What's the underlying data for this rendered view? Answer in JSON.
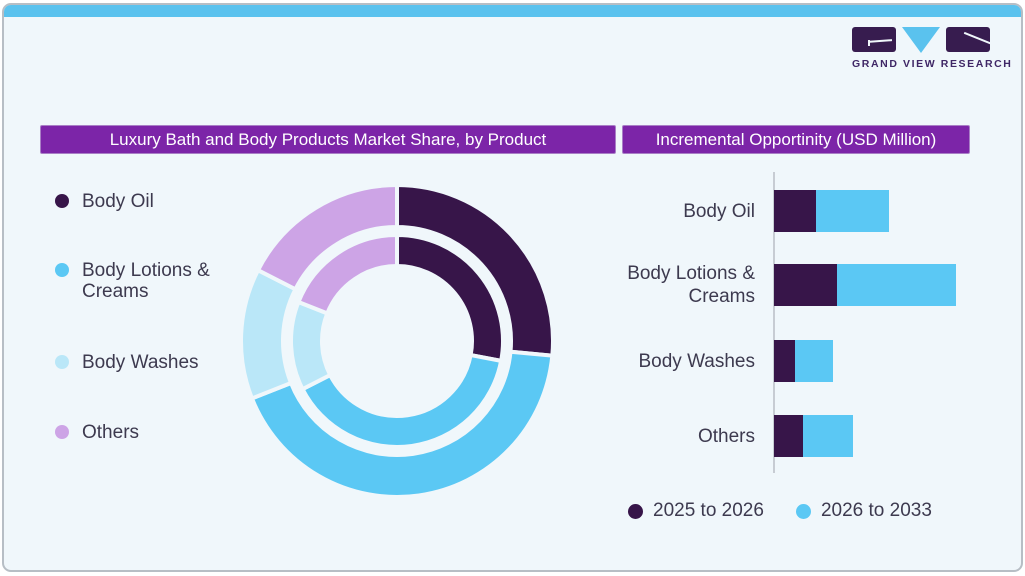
{
  "brand": {
    "name": "GRAND VIEW RESEARCH"
  },
  "panels": {
    "left_header": "Luxury Bath and Body Products Market Share, by Product",
    "right_header": "Incremental Opportinity (USD Million)"
  },
  "colors": {
    "background": "#f0f7fb",
    "card_border": "#b7bec5",
    "top_strip": "#5ac2ee",
    "header_bg": "#7c25a8",
    "header_text": "#ffffff",
    "label_text": "#3d3a4f",
    "axis_line": "#c7ccd3",
    "body_oil": "#371549",
    "body_lotions_creams": "#5bc8f4",
    "body_washes": "#bae7f8",
    "others": "#cda4e6"
  },
  "product_legend": [
    {
      "label": "Body Oil",
      "color": "#371549"
    },
    {
      "label": "Body Lotions & Creams",
      "color": "#5bc8f4"
    },
    {
      "label": "Body Washes",
      "color": "#bae7f8"
    },
    {
      "label": "Others",
      "color": "#cda4e6"
    }
  ],
  "period_legend": [
    {
      "label": "2025 to 2026",
      "color": "#371549"
    },
    {
      "label": "2026 to 2033",
      "color": "#5bc8f4"
    }
  ],
  "chart_data": [
    {
      "type": "pie",
      "subtype": "double-ring-donut",
      "title": "Luxury Bath and Body Products Market Share, by Product",
      "categories": [
        "Body Oil",
        "Body Lotions & Creams",
        "Body Washes",
        "Others"
      ],
      "colors": [
        "#371549",
        "#5bc8f4",
        "#bae7f8",
        "#cda4e6"
      ],
      "series": [
        {
          "name": "inner-ring",
          "values": [
            28,
            39.5,
            13.5,
            19
          ]
        },
        {
          "name": "outer-ring",
          "values": [
            26.5,
            42.5,
            13.5,
            17.5
          ]
        }
      ],
      "units": "percent-estimated-no-labels-shown",
      "start_angle_deg": 0,
      "direction": "clockwise",
      "value_labels_shown": false
    },
    {
      "type": "bar",
      "orientation": "horizontal",
      "stacked": true,
      "title": "Incremental Opportinity (USD Million)",
      "categories": [
        "Body Oil",
        "Body Lotions & Creams",
        "Body Washes",
        "Others"
      ],
      "series": [
        {
          "name": "2025 to 2026",
          "color": "#371549",
          "values": [
            42,
            63,
            21,
            29
          ]
        },
        {
          "name": "2026 to 2033",
          "color": "#5bc8f4",
          "values": [
            73,
            119,
            38,
            50
          ]
        }
      ],
      "units": "relative-length-no-axis-labels-shown",
      "axis_value_labels_shown": false,
      "legend_position": "bottom"
    }
  ]
}
